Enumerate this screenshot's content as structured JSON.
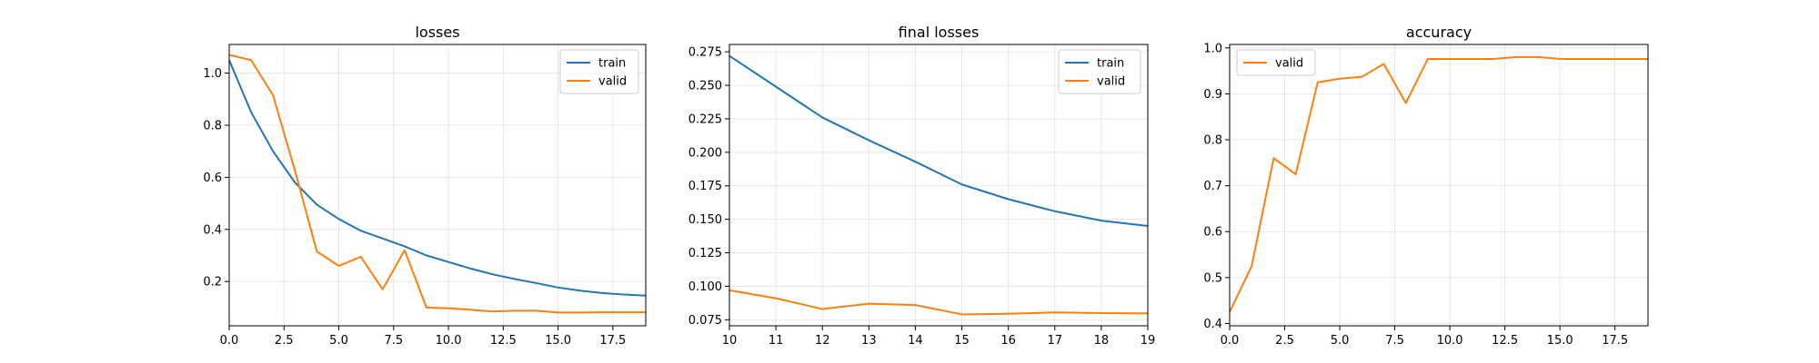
{
  "chart_data": [
    {
      "type": "line",
      "title": "losses",
      "xlabel": "",
      "ylabel": "",
      "x": [
        0,
        1,
        2,
        3,
        4,
        5,
        6,
        7,
        8,
        9,
        10,
        11,
        12,
        13,
        14,
        15,
        16,
        17,
        18,
        19
      ],
      "xlim": [
        0,
        19
      ],
      "ylim": [
        0.03,
        1.11
      ],
      "xticks": [
        0.0,
        2.5,
        5.0,
        7.5,
        10.0,
        12.5,
        15.0,
        17.5
      ],
      "xtick_labels": [
        "0.0",
        "2.5",
        "5.0",
        "7.5",
        "10.0",
        "12.5",
        "15.0",
        "17.5"
      ],
      "yticks": [
        0.2,
        0.4,
        0.6,
        0.8,
        1.0
      ],
      "ytick_labels": [
        "0.2",
        "0.4",
        "0.6",
        "0.8",
        "1.0"
      ],
      "grid": true,
      "legend_position": "top-right",
      "series": [
        {
          "name": "train",
          "color": "#1f77b4",
          "values": [
            1.05,
            0.85,
            0.7,
            0.58,
            0.495,
            0.44,
            0.395,
            0.365,
            0.335,
            0.3,
            0.275,
            0.25,
            0.228,
            0.21,
            0.194,
            0.177,
            0.165,
            0.156,
            0.15,
            0.146
          ]
        },
        {
          "name": "valid",
          "color": "#ff7f0e",
          "values": [
            1.07,
            1.05,
            0.915,
            0.625,
            0.315,
            0.26,
            0.295,
            0.17,
            0.32,
            0.1,
            0.097,
            0.092,
            0.085,
            0.088,
            0.088,
            0.081,
            0.081,
            0.082,
            0.082,
            0.082
          ]
        }
      ]
    },
    {
      "type": "line",
      "title": "final losses",
      "xlabel": "",
      "ylabel": "",
      "x": [
        10,
        11,
        12,
        13,
        14,
        15,
        16,
        17,
        18,
        19
      ],
      "xlim": [
        10,
        19
      ],
      "ylim": [
        0.0705,
        0.2805
      ],
      "xticks": [
        10,
        11,
        12,
        13,
        14,
        15,
        16,
        17,
        18,
        19
      ],
      "xtick_labels": [
        "10",
        "11",
        "12",
        "13",
        "14",
        "15",
        "16",
        "17",
        "18",
        "19"
      ],
      "yticks": [
        0.075,
        0.1,
        0.125,
        0.15,
        0.175,
        0.2,
        0.225,
        0.25,
        0.275
      ],
      "ytick_labels": [
        "0.075",
        "0.100",
        "0.125",
        "0.150",
        "0.175",
        "0.200",
        "0.225",
        "0.250",
        "0.275"
      ],
      "grid": true,
      "legend_position": "top-right",
      "series": [
        {
          "name": "train",
          "color": "#1f77b4",
          "values": [
            0.272,
            0.249,
            0.226,
            0.209,
            0.193,
            0.176,
            0.165,
            0.156,
            0.149,
            0.145
          ]
        },
        {
          "name": "valid",
          "color": "#ff7f0e",
          "values": [
            0.097,
            0.091,
            0.083,
            0.087,
            0.086,
            0.079,
            0.0795,
            0.0805,
            0.08,
            0.0797
          ]
        }
      ]
    },
    {
      "type": "line",
      "title": "accuracy",
      "xlabel": "",
      "ylabel": "",
      "x": [
        0,
        1,
        2,
        3,
        4,
        5,
        6,
        7,
        8,
        9,
        10,
        11,
        12,
        13,
        14,
        15,
        16,
        17,
        18,
        19
      ],
      "xlim": [
        0,
        19
      ],
      "ylim": [
        0.395,
        1.0075
      ],
      "xticks": [
        0.0,
        2.5,
        5.0,
        7.5,
        10.0,
        12.5,
        15.0,
        17.5
      ],
      "xtick_labels": [
        "0.0",
        "2.5",
        "5.0",
        "7.5",
        "10.0",
        "12.5",
        "15.0",
        "17.5"
      ],
      "yticks": [
        0.4,
        0.5,
        0.6,
        0.7,
        0.8,
        0.9,
        1.0
      ],
      "ytick_labels": [
        "0.4",
        "0.5",
        "0.6",
        "0.7",
        "0.8",
        "0.9",
        "1.0"
      ],
      "grid": true,
      "legend_position": "top-left",
      "series": [
        {
          "name": "valid",
          "color": "#ff7f0e",
          "values": [
            0.425,
            0.525,
            0.76,
            0.725,
            0.925,
            0.933,
            0.937,
            0.965,
            0.88,
            0.976,
            0.976,
            0.976,
            0.976,
            0.98,
            0.98,
            0.976,
            0.976,
            0.976,
            0.976,
            0.976
          ]
        }
      ]
    }
  ]
}
